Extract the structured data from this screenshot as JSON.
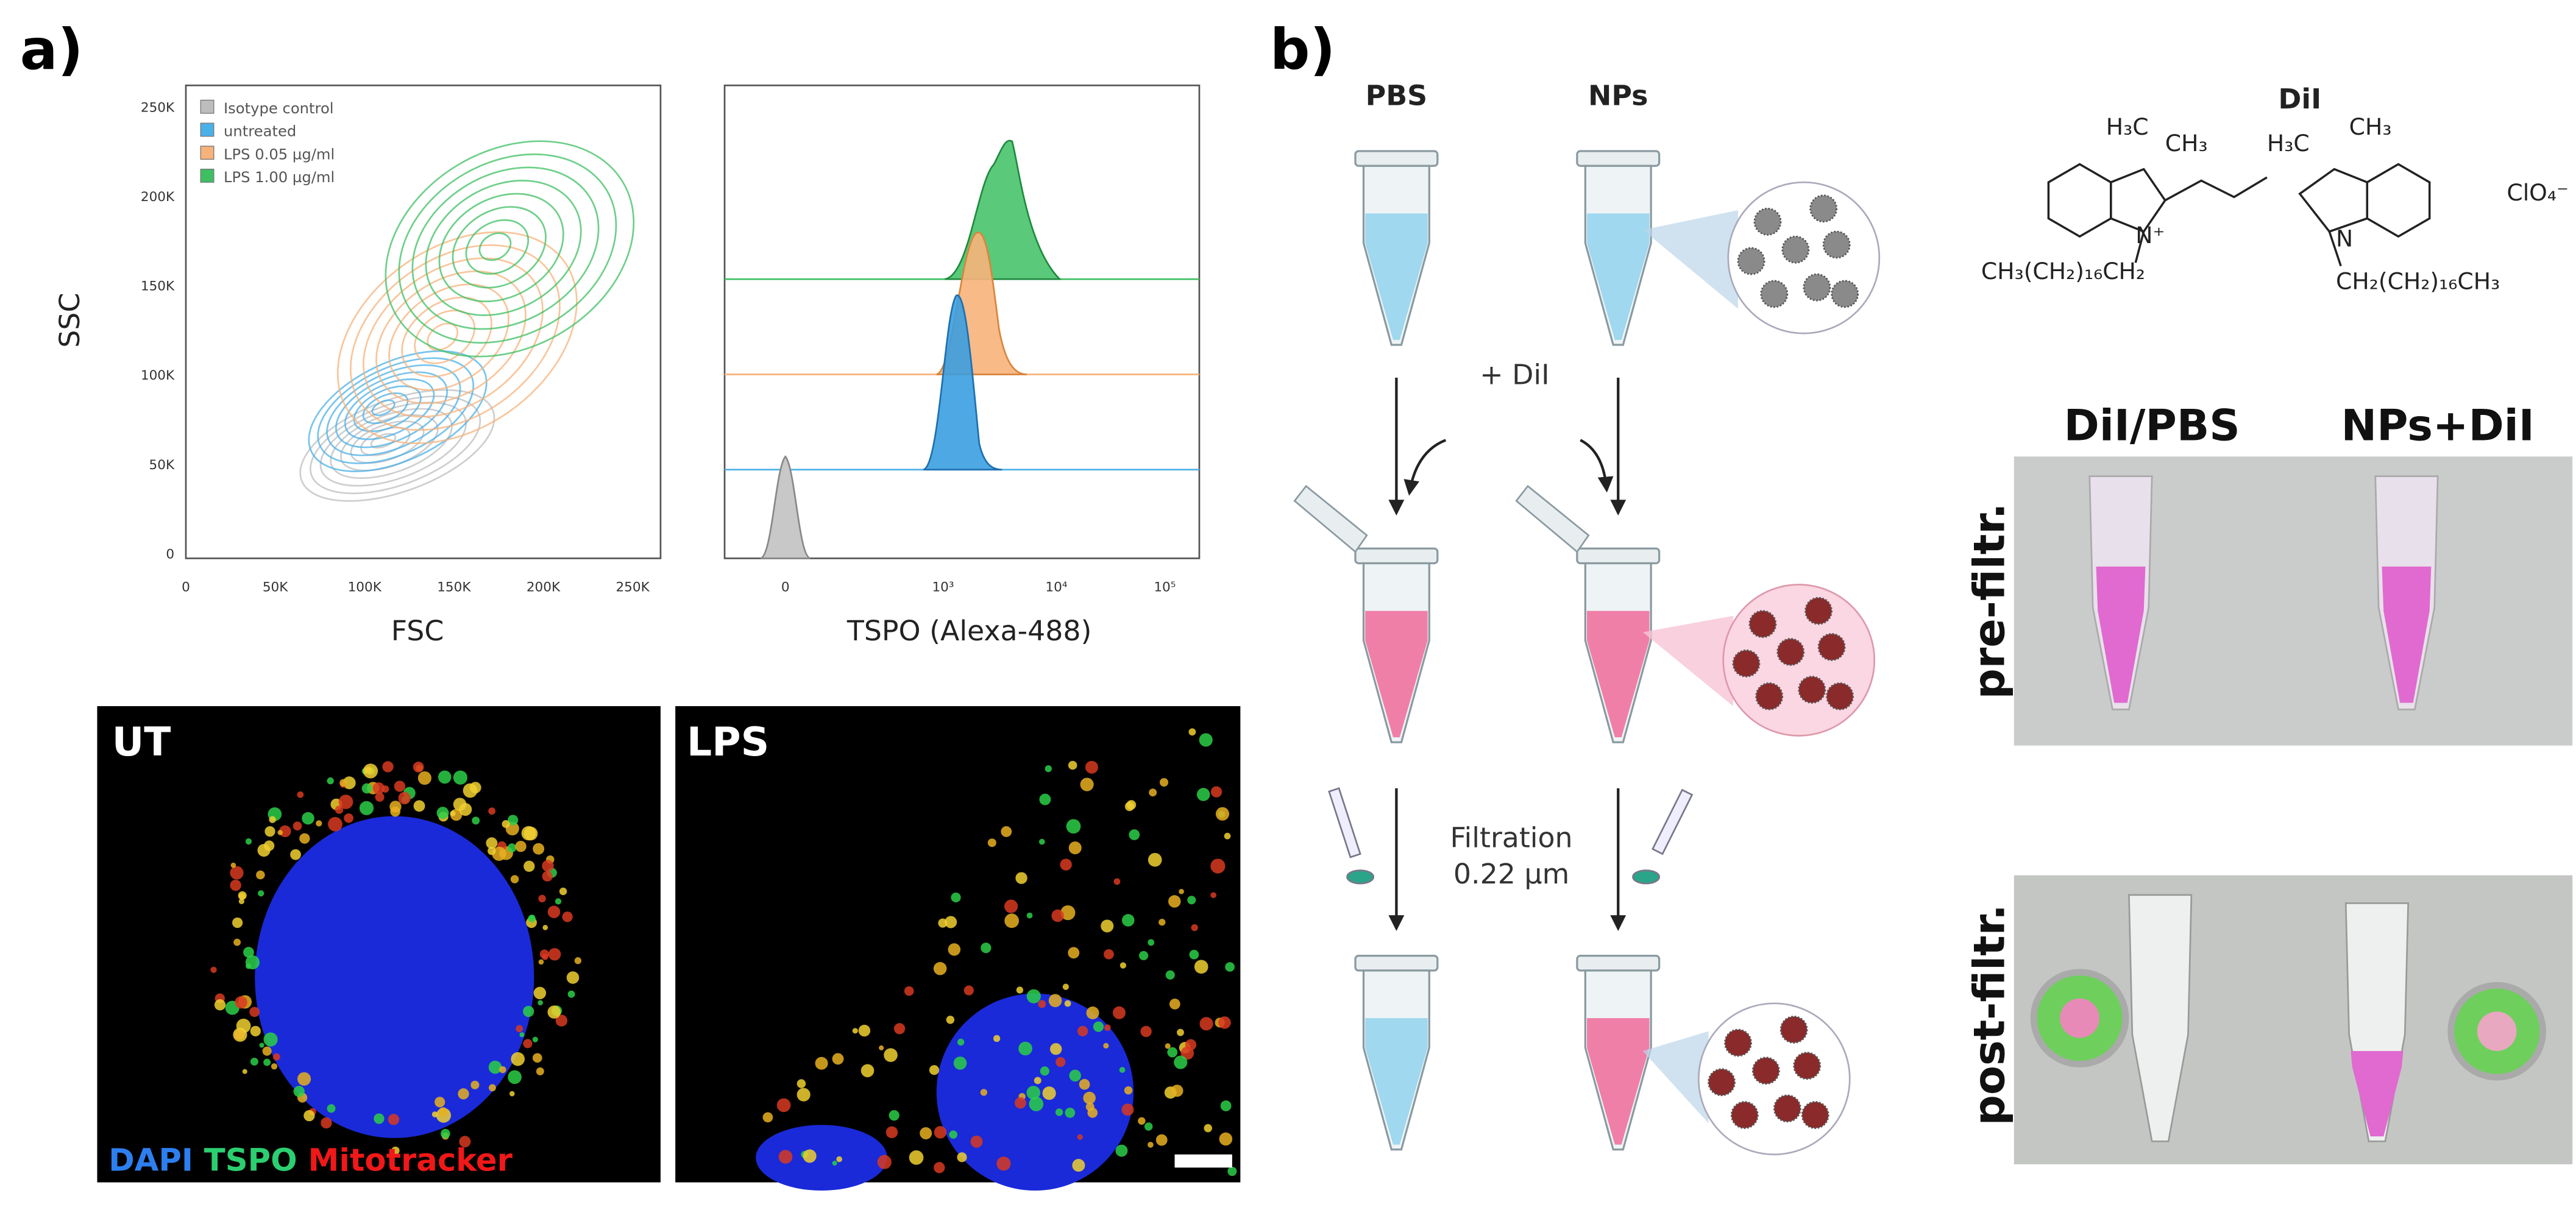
{
  "panel_a": {
    "label": "a)",
    "flow_scatter": {
      "legend": [
        "Isotype control",
        "untreated",
        "LPS 0.05 µg/ml",
        "LPS 1.00 µg/ml"
      ],
      "y_label": "SSC",
      "x_label": "FSC",
      "y_ticks": [
        "0",
        "50K",
        "100K",
        "150K",
        "200K",
        "250K"
      ],
      "x_ticks": [
        "0",
        "50K",
        "100K",
        "150K",
        "200K",
        "250K"
      ]
    },
    "histogram": {
      "x_label": "TSPO (Alexa-488)",
      "x_ticks": [
        "0",
        "10³",
        "10⁴",
        "10⁵"
      ]
    },
    "microscopy": {
      "panels": [
        "UT",
        "LPS"
      ],
      "stains": [
        "DAPI",
        "TSPO",
        "Mitotracker"
      ]
    }
  },
  "panel_b": {
    "label": "b)",
    "columns": [
      "PBS",
      "NPs"
    ],
    "step1": "+ DiI",
    "step2": [
      "Filtration",
      "0.22 µm"
    ],
    "structure": {
      "title": "DiI",
      "groups": [
        "H₃C",
        "CH₃",
        "H₃C",
        "CH₃",
        "N⁺",
        "N",
        "CH₃(CH₂)₁₆CH₂",
        "CH₂(CH₂)₁₆CH₃",
        "ClO₄⁻"
      ]
    },
    "photos": {
      "columns": [
        "DiI/PBS",
        "NPs+DiI"
      ],
      "rows": [
        "pre-filtr.",
        "post-filtr."
      ]
    }
  }
}
